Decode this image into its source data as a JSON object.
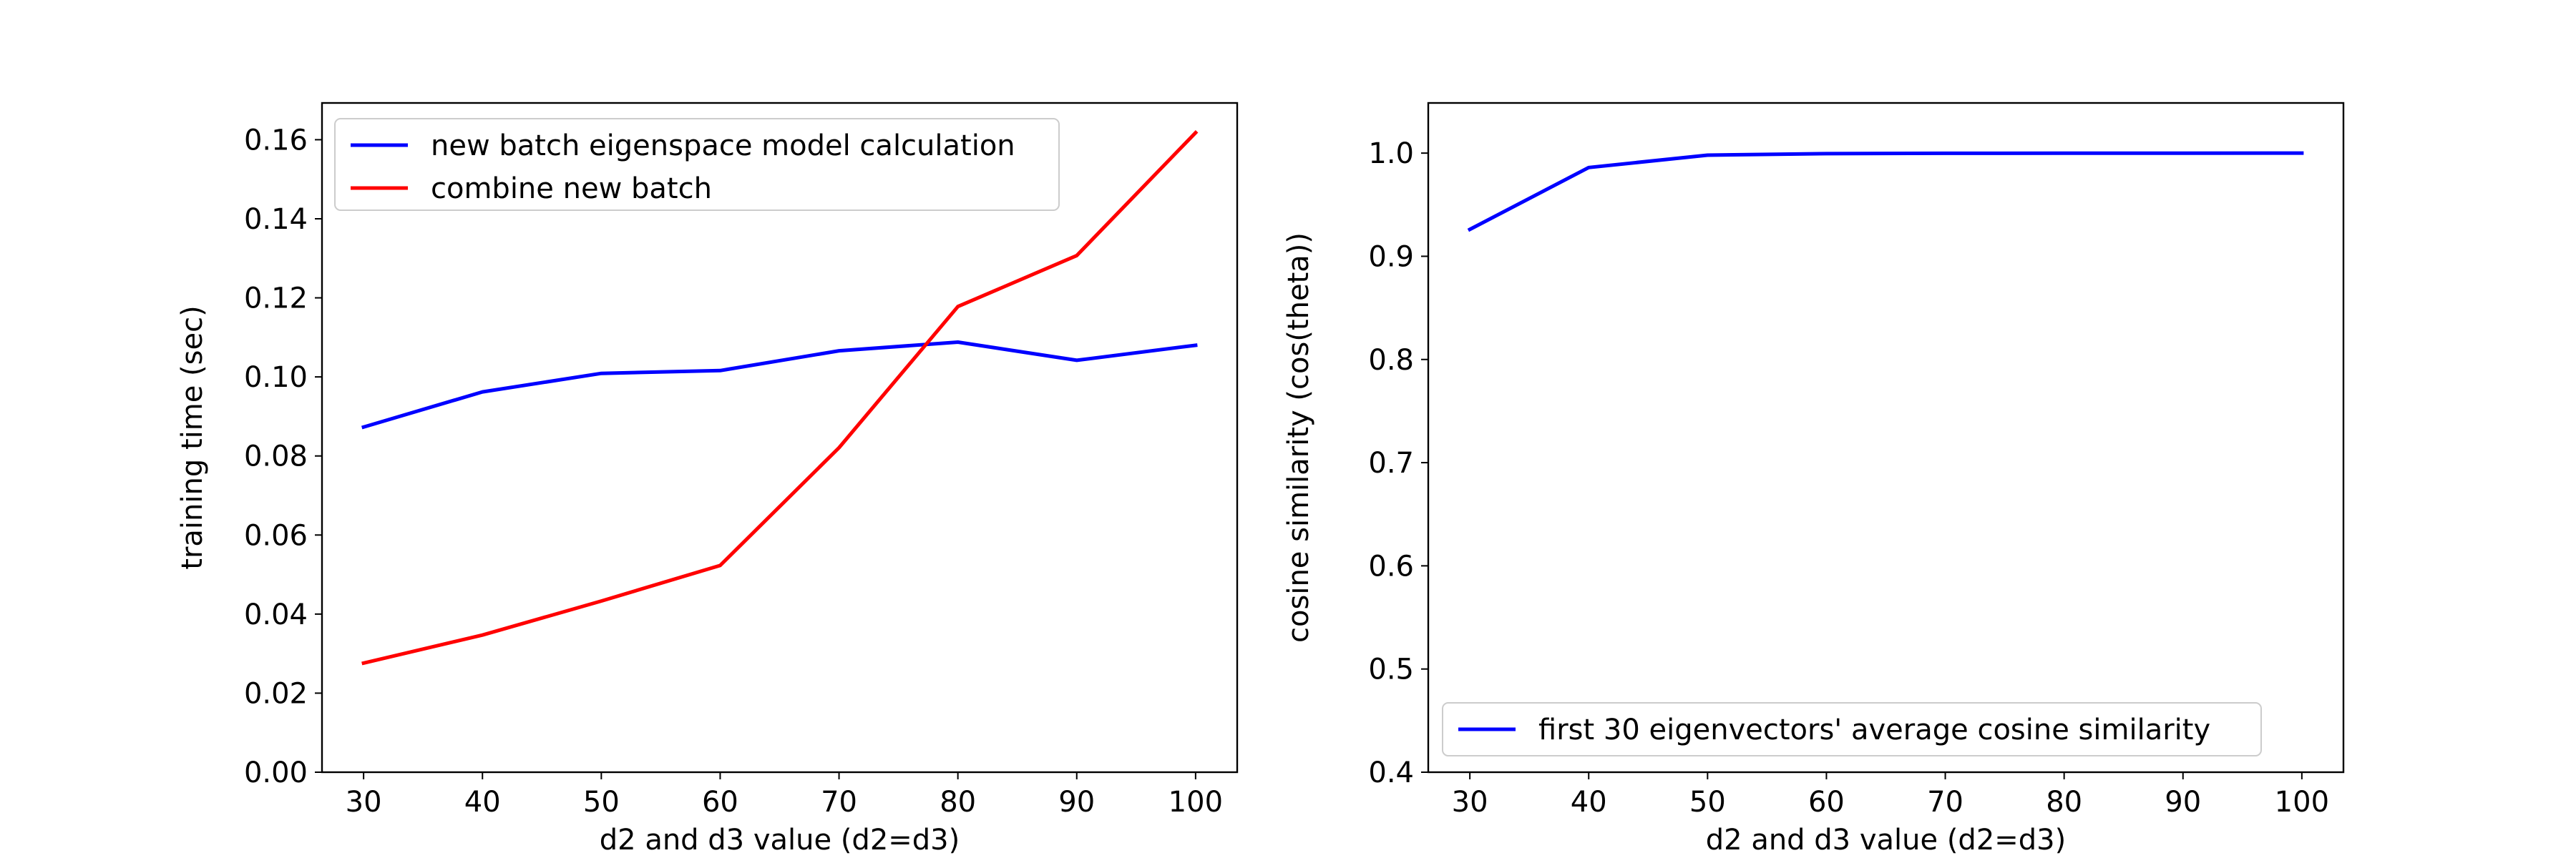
{
  "chart_data": [
    {
      "type": "line",
      "xlabel": "d2 and d3 value (d2=d3)",
      "ylabel": "training time (sec)",
      "x": [
        30,
        40,
        50,
        60,
        70,
        80,
        90,
        100
      ],
      "xlim": [
        26.5,
        103.5
      ],
      "ylim": [
        0.0,
        0.1693
      ],
      "xticks": [
        30,
        40,
        50,
        60,
        70,
        80,
        90,
        100
      ],
      "yticks": [
        0.0,
        0.02,
        0.04,
        0.06,
        0.08,
        0.1,
        0.12,
        0.14,
        0.16
      ],
      "ytick_labels": [
        "0.00",
        "0.02",
        "0.04",
        "0.06",
        "0.08",
        "0.10",
        "0.12",
        "0.14",
        "0.16"
      ],
      "grid": false,
      "legend_position": "upper-left",
      "series": [
        {
          "name": "new batch eigenspace model calculation",
          "color": "#0000ff",
          "values": [
            0.0873,
            0.0962,
            0.1009,
            0.1016,
            0.1066,
            0.1088,
            0.1042,
            0.108
          ]
        },
        {
          "name": "combine new batch",
          "color": "#ff0000",
          "values": [
            0.0276,
            0.0347,
            0.0433,
            0.0523,
            0.0821,
            0.1178,
            0.1307,
            0.1618
          ]
        }
      ]
    },
    {
      "type": "line",
      "xlabel": "d2 and d3 value (d2=d3)",
      "ylabel": "cosine similarity (cos(theta))",
      "x": [
        30,
        40,
        50,
        60,
        70,
        80,
        90,
        100
      ],
      "xlim": [
        26.5,
        103.5
      ],
      "ylim": [
        0.4,
        1.0486
      ],
      "xticks": [
        30,
        40,
        50,
        60,
        70,
        80,
        90,
        100
      ],
      "yticks": [
        0.4,
        0.5,
        0.6,
        0.7,
        0.8,
        0.9,
        1.0
      ],
      "ytick_labels": [
        "0.4",
        "0.5",
        "0.6",
        "0.7",
        "0.8",
        "0.9",
        "1.0"
      ],
      "grid": false,
      "legend_position": "lower-left",
      "series": [
        {
          "name": "first 30 eigenvectors' average cosine similarity",
          "color": "#0000ff",
          "values": [
            0.926,
            0.986,
            0.998,
            0.9995,
            0.9998,
            0.9999,
            0.9999,
            1.0
          ]
        }
      ]
    }
  ]
}
